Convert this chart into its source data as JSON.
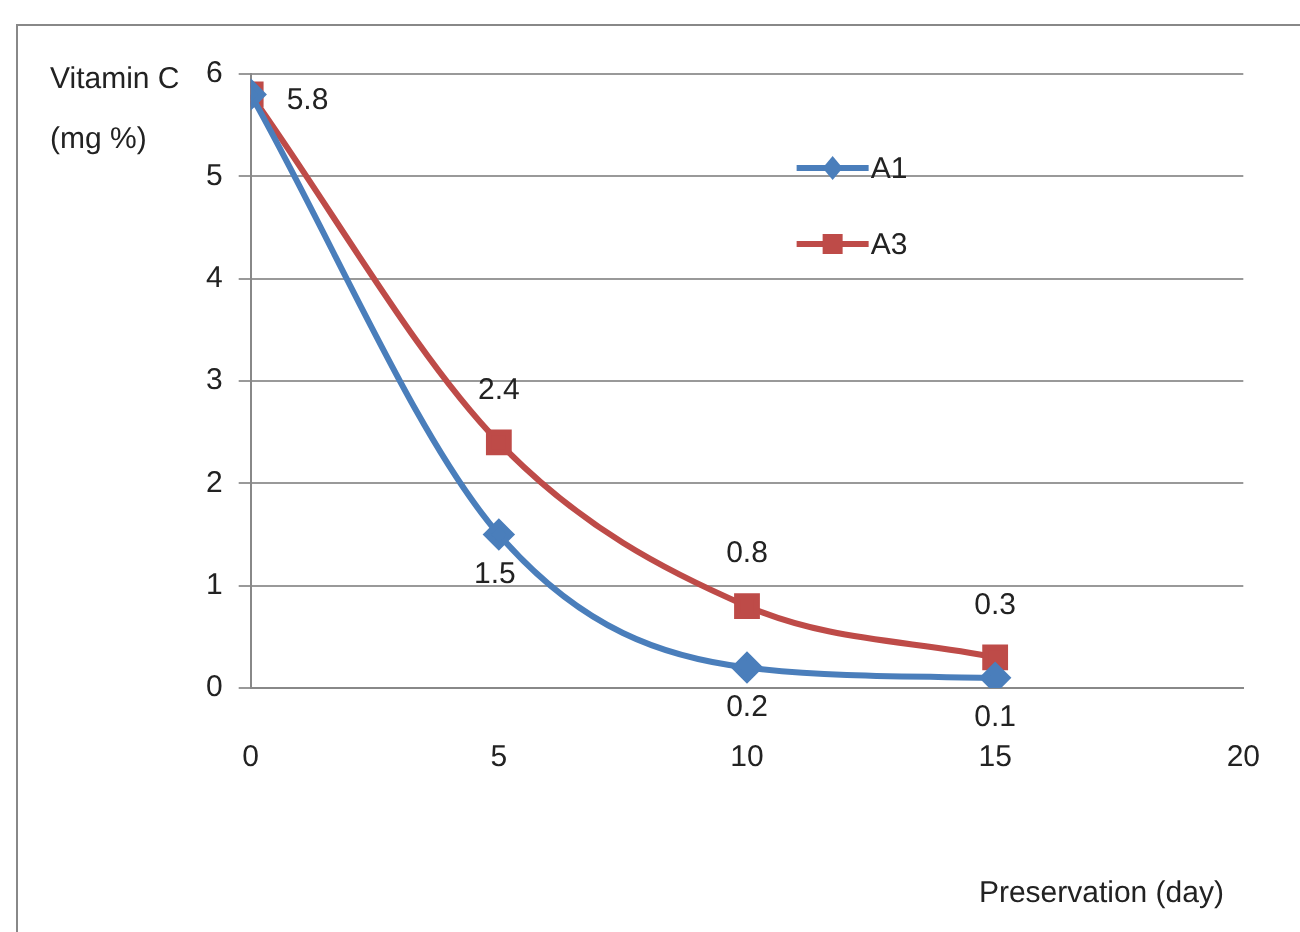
{
  "chart_data": {
    "type": "line",
    "xlabel": "Preservation (day)",
    "ylabel": "Vitamin C (mg %)",
    "x": [
      0,
      5,
      10,
      15
    ],
    "series": [
      {
        "name": "A1",
        "color": "#4a7ebb",
        "marker": "diamond",
        "values": [
          5.8,
          1.5,
          0.2,
          0.1
        ],
        "value_labels": [
          null,
          "1.5",
          "0.2",
          "0.1"
        ]
      },
      {
        "name": "A3",
        "color": "#be4b48",
        "marker": "square",
        "values": [
          5.8,
          2.4,
          0.8,
          0.3
        ],
        "value_labels": [
          "5.8",
          "2.4",
          "0.8",
          "0.3"
        ]
      }
    ],
    "xlim": [
      0,
      20
    ],
    "xticks": [
      0,
      5,
      10,
      15,
      20
    ],
    "ylim": [
      0,
      6
    ],
    "yticks": [
      0,
      1,
      2,
      3,
      4,
      5,
      6
    ],
    "grid": "y",
    "legend": "top right"
  }
}
